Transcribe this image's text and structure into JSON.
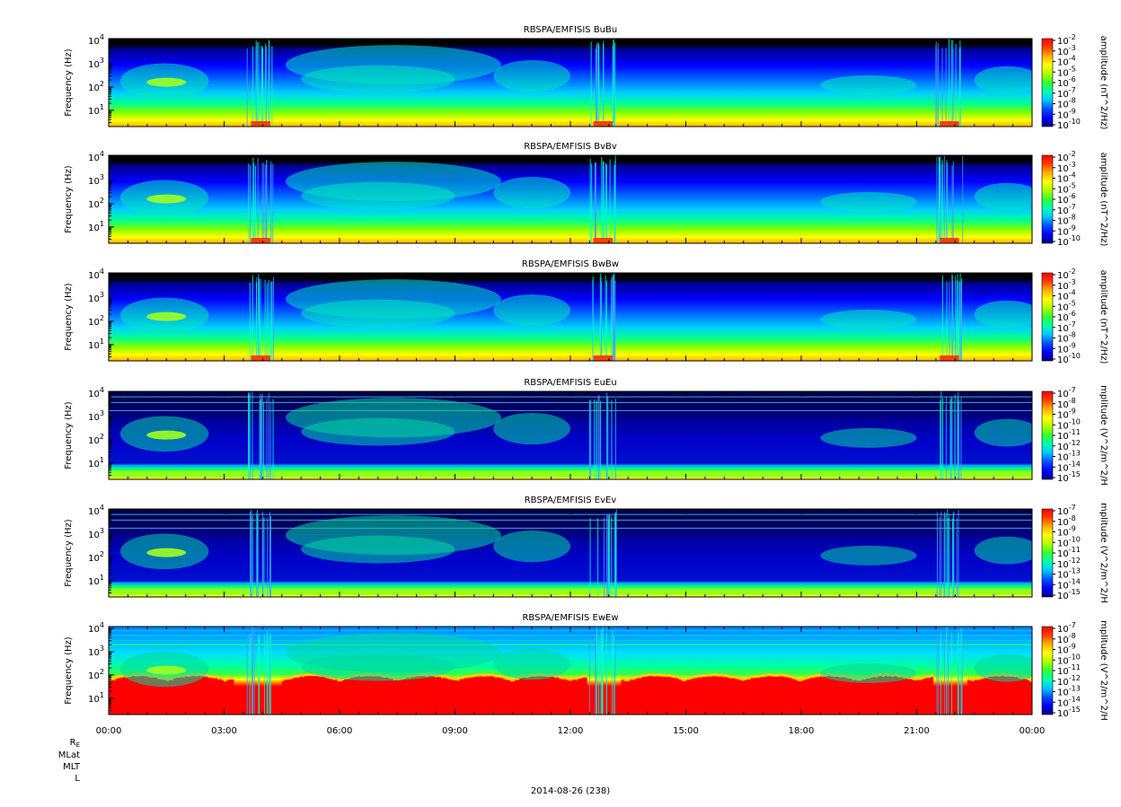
{
  "figure": {
    "date_label": "2014-08-26 (238)",
    "ephemeris_labels": [
      "Rₑ",
      "MLat",
      "MLT",
      "L"
    ]
  },
  "shared_x": {
    "tick_labels": [
      "00:00",
      "03:00",
      "06:00",
      "09:00",
      "12:00",
      "15:00",
      "18:00",
      "21:00",
      "00:00"
    ],
    "range_hours": [
      0,
      24
    ]
  },
  "colors": {
    "colormap": [
      "#000080",
      "#0000ff",
      "#0050ff",
      "#00c8ff",
      "#00ffb0",
      "#30ff30",
      "#b0ff00",
      "#ffff00",
      "#ffb000",
      "#ff4000",
      "#ff0000"
    ],
    "background_no_data": "#000000"
  },
  "panels": [
    {
      "title": "RBSPA/EMFISIS  BuBu",
      "ylabel": "Frequency (Hz)",
      "cbar_label": "amplitude (nT^2/Hz)",
      "cbar_exp": [
        -2,
        -3,
        -4,
        -5,
        -6,
        -7,
        -8,
        -9,
        -10
      ],
      "kind": "B"
    },
    {
      "title": "RBSPA/EMFISIS  BvBv",
      "ylabel": "Frequency (Hz)",
      "cbar_label": "amplitude (nT^2/Hz)",
      "cbar_exp": [
        -2,
        -3,
        -4,
        -5,
        -6,
        -7,
        -8,
        -9,
        -10
      ],
      "kind": "B"
    },
    {
      "title": "RBSPA/EMFISIS  BwBw",
      "ylabel": "Frequency (Hz)",
      "cbar_label": "amplitude (nT^2/Hz)",
      "cbar_exp": [
        -2,
        -3,
        -4,
        -5,
        -6,
        -7,
        -8,
        -9,
        -10
      ],
      "kind": "B"
    },
    {
      "title": "RBSPA/EMFISIS  EuEu",
      "ylabel": "Frequency (Hz)",
      "cbar_label": "mplitude (V^2/m^2/H",
      "cbar_exp": [
        -7,
        -8,
        -9,
        -10,
        -11,
        -12,
        -13,
        -14,
        -15
      ],
      "kind": "E"
    },
    {
      "title": "RBSPA/EMFISIS  EvEv",
      "ylabel": "Frequency (Hz)",
      "cbar_label": "mplitude (V^2/m^2/H",
      "cbar_exp": [
        -7,
        -8,
        -9,
        -10,
        -11,
        -12,
        -13,
        -14,
        -15
      ],
      "kind": "E"
    },
    {
      "title": "RBSPA/EMFISIS  EwEw",
      "ylabel": "Frequency (Hz)",
      "cbar_label": "mplitude (V^2/m^2/H",
      "cbar_exp": [
        -7,
        -8,
        -9,
        -10,
        -11,
        -12,
        -13,
        -14,
        -15
      ],
      "kind": "Ew"
    }
  ],
  "chart_data": {
    "type": "heatmap",
    "x_unit": "UT hours",
    "xlim": [
      0,
      24
    ],
    "ylim_hz": [
      2,
      12000
    ],
    "yscale": "log",
    "ytick_labels": [
      "10^1",
      "10^2",
      "10^3",
      "10^4"
    ],
    "panels": [
      "BuBu",
      "BvBv",
      "BwBw",
      "EuEu",
      "EvEv",
      "EwEw"
    ],
    "b_cbar_range": [
      "1e-10",
      "1e-2"
    ],
    "e_cbar_range": [
      "1e-15",
      "1e-7"
    ],
    "features": [
      {
        "name": "hiss band",
        "t_hours": [
          0.6,
          2.2
        ],
        "f_hz": [
          100,
          300
        ]
      },
      {
        "name": "perigee crossing",
        "t_hours": [
          3.7,
          4.3
        ]
      },
      {
        "name": "perigee crossing",
        "t_hours": [
          12.5,
          13.2
        ]
      },
      {
        "name": "perigee crossing",
        "t_hours": [
          21.5,
          22.2
        ]
      }
    ]
  }
}
